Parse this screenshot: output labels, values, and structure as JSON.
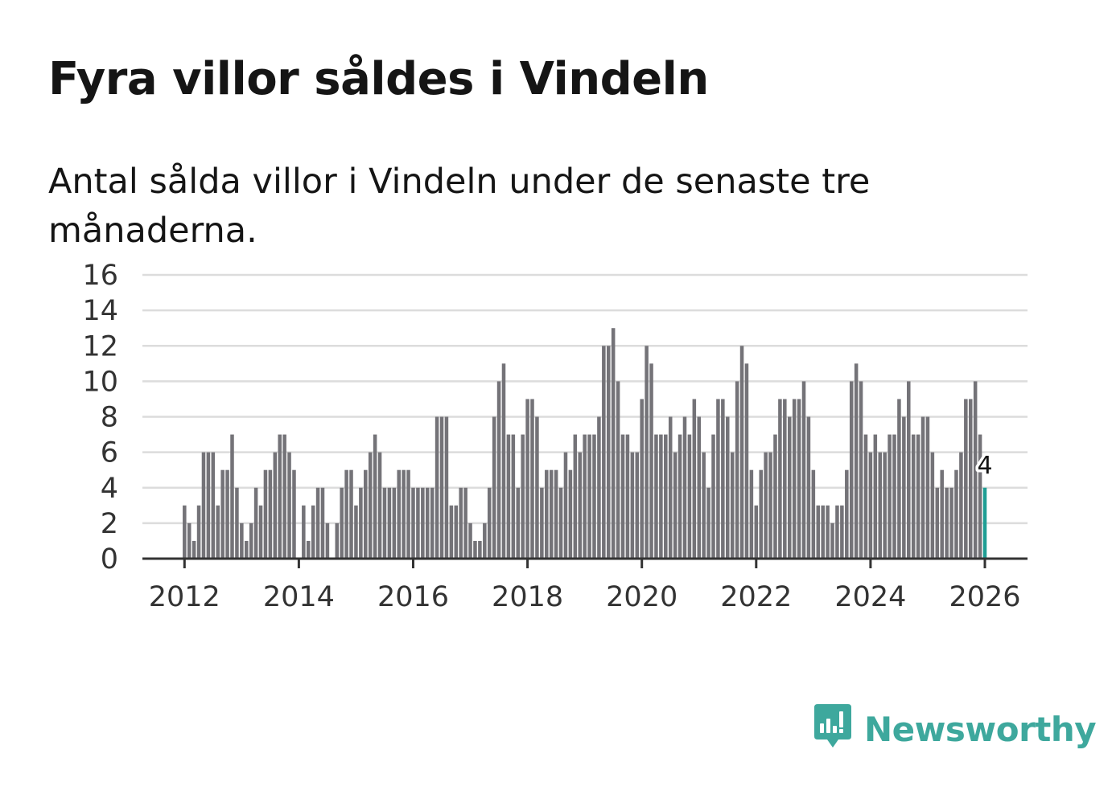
{
  "title": "Fyra villor såldes i Vindeln",
  "subtitle": "Antal sålda villor i Vindeln under de senaste tre månaderna.",
  "brand": {
    "name": "Newsworthy",
    "color": "#3ea89d",
    "icon": "newsworthy-logo-icon"
  },
  "colors": {
    "bar": "#747378",
    "highlight": "#1f9e94",
    "grid": "#dcdcdc",
    "axis": "#333333"
  },
  "chart_data": {
    "type": "bar",
    "title": "Fyra villor såldes i Vindeln",
    "xlabel": "",
    "ylabel": "",
    "ylim": [
      0,
      16
    ],
    "yticks": [
      0,
      2,
      4,
      6,
      8,
      10,
      12,
      14,
      16
    ],
    "xticks": [
      "2012",
      "2014",
      "2016",
      "2018",
      "2020",
      "2022",
      "2024",
      "2026"
    ],
    "start": "2012-01",
    "interval": "month (rolling three-month total)",
    "grid": true,
    "legend": "none",
    "highlight_last": true,
    "last_label": "4",
    "values": [
      3,
      2,
      1,
      3,
      6,
      6,
      6,
      3,
      5,
      5,
      7,
      4,
      2,
      1,
      2,
      4,
      3,
      5,
      5,
      6,
      7,
      7,
      6,
      5,
      0,
      3,
      1,
      3,
      4,
      4,
      2,
      0,
      2,
      4,
      5,
      5,
      3,
      4,
      5,
      6,
      7,
      6,
      4,
      4,
      4,
      5,
      5,
      5,
      4,
      4,
      4,
      4,
      4,
      8,
      8,
      8,
      3,
      3,
      4,
      4,
      2,
      1,
      1,
      2,
      4,
      8,
      10,
      11,
      7,
      7,
      4,
      7,
      9,
      9,
      8,
      4,
      5,
      5,
      5,
      4,
      6,
      5,
      7,
      6,
      7,
      7,
      7,
      8,
      12,
      12,
      13,
      10,
      7,
      7,
      6,
      6,
      9,
      12,
      11,
      7,
      7,
      7,
      8,
      6,
      7,
      8,
      7,
      9,
      8,
      6,
      4,
      7,
      9,
      9,
      8,
      6,
      10,
      12,
      11,
      5,
      3,
      5,
      6,
      6,
      7,
      9,
      9,
      8,
      9,
      9,
      10,
      8,
      5,
      3,
      3,
      3,
      2,
      3,
      3,
      5,
      10,
      11,
      10,
      7,
      6,
      7,
      6,
      6,
      7,
      7,
      9,
      8,
      10,
      7,
      7,
      8,
      8,
      6,
      4,
      5,
      4,
      4,
      5,
      6,
      9,
      9,
      10,
      7,
      4
    ]
  }
}
